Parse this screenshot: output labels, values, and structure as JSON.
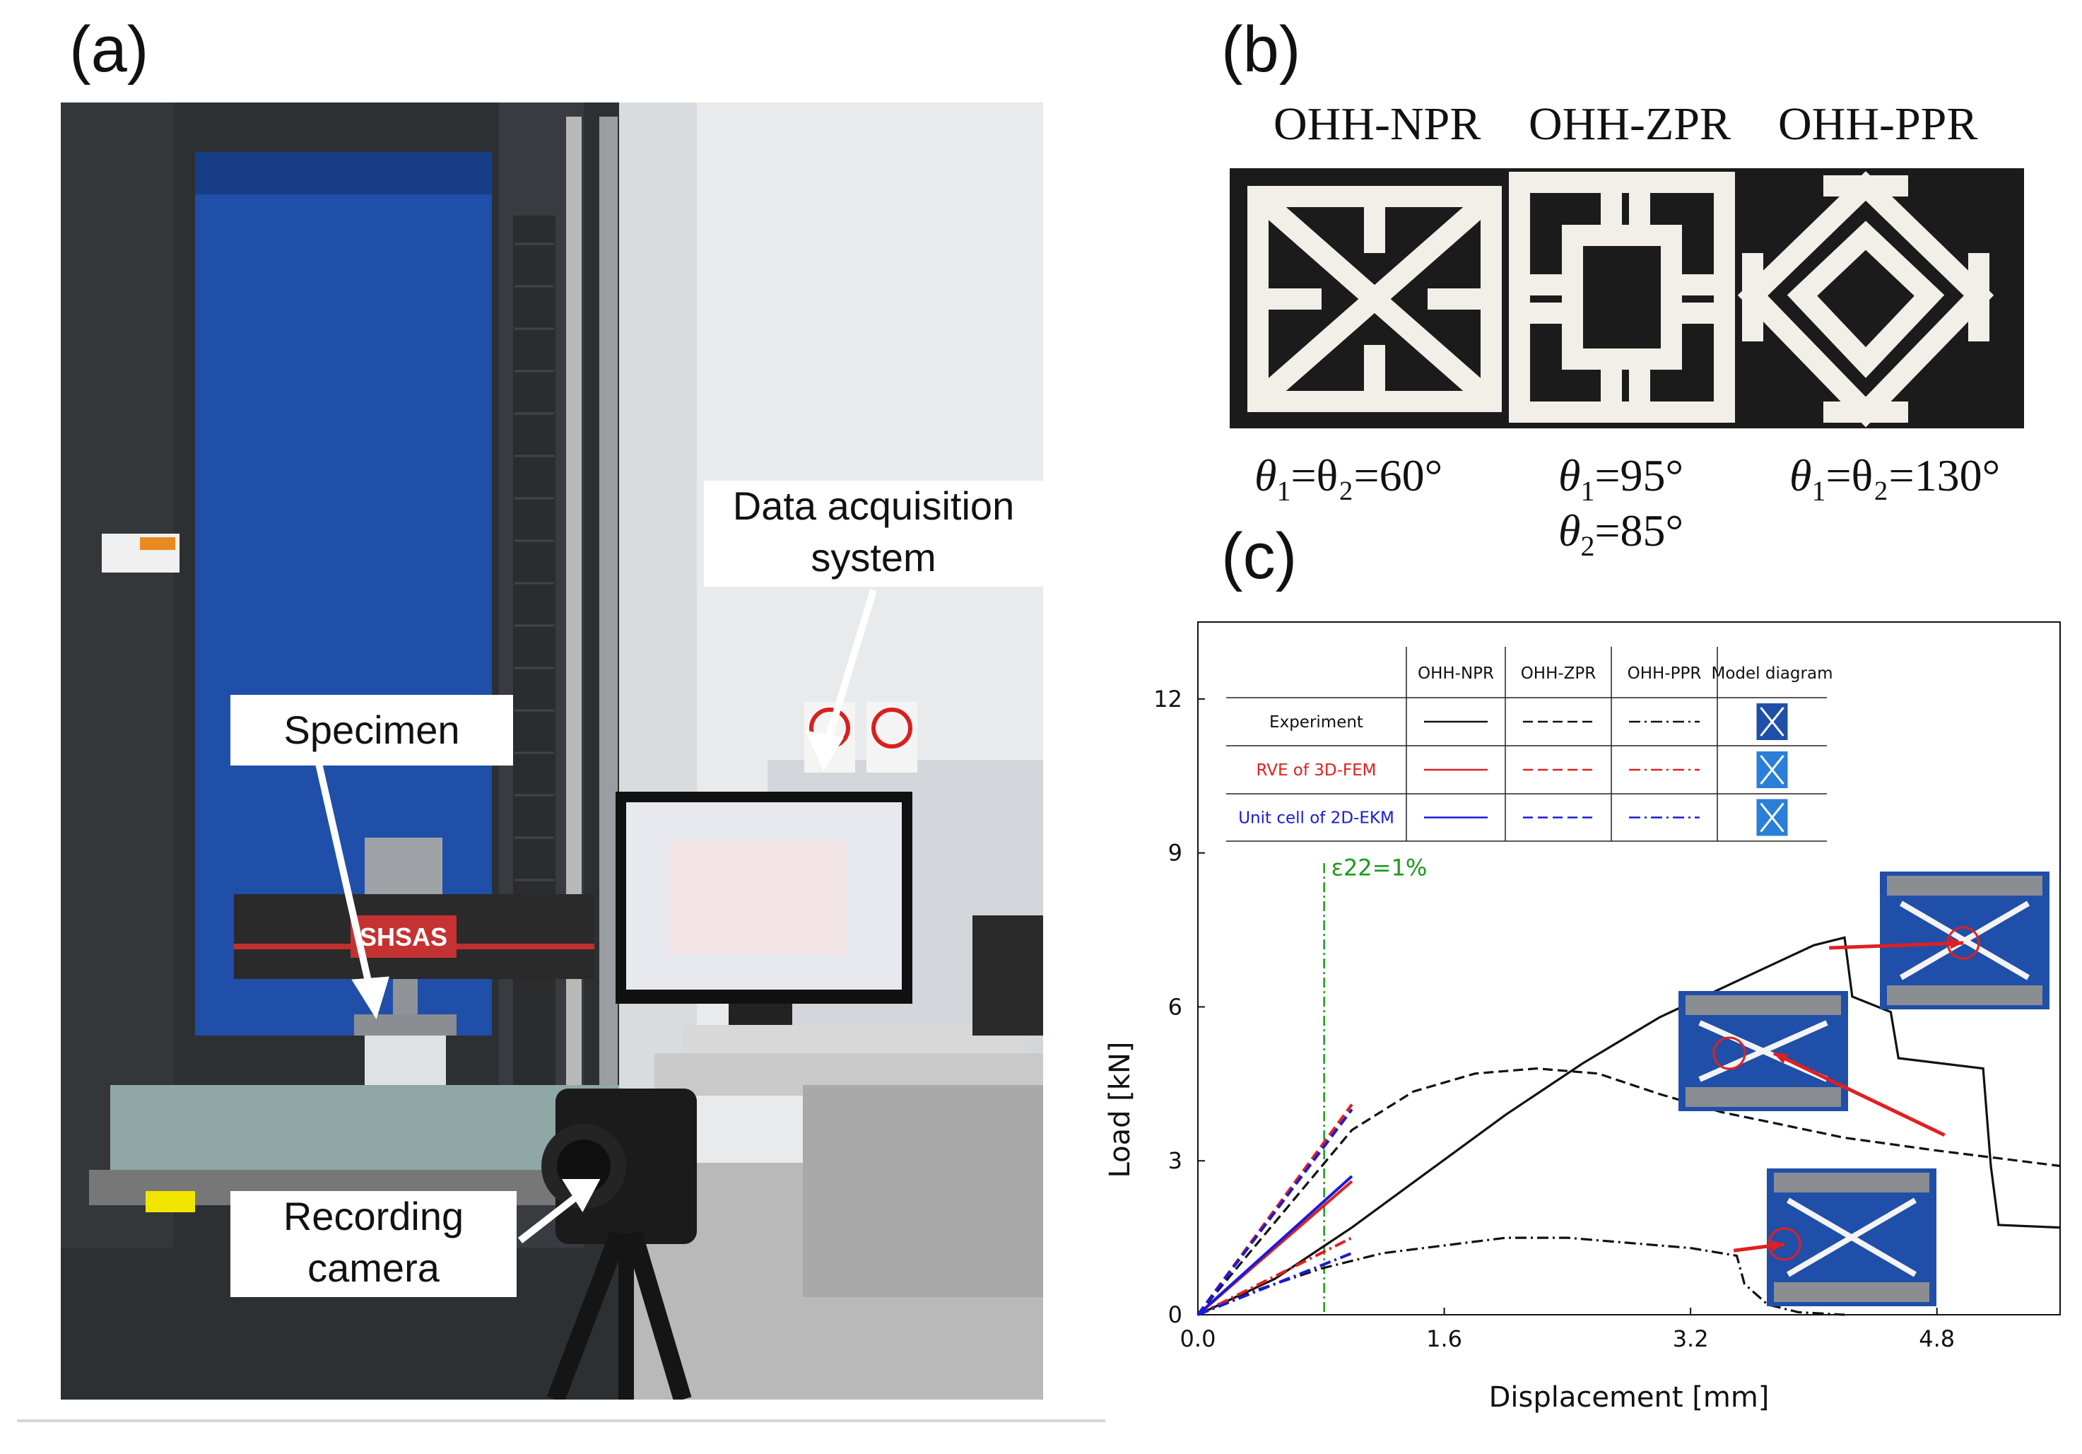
{
  "panels": {
    "a": "(a)",
    "b": "(b)",
    "c": "(c)"
  },
  "photo_callouts": {
    "data_acquisition": "Data acquisition\nsystem",
    "specimen": "Specimen",
    "recording_camera": "Recording\ncamera",
    "machine_brand": "SHSAS"
  },
  "specimens": {
    "names": [
      "OHH-NPR",
      "OHH-ZPR",
      "OHH-PPR"
    ],
    "npr_angle": "=θ₂=60°",
    "zpr_angle_1": "=95°",
    "zpr_angle_2": "=85°",
    "ppr_angle": "=θ₂=130°"
  },
  "colors": {
    "experiment": "#111111",
    "fem": "#e02020",
    "ekm": "#1a1ad8",
    "strain_line": "#1a9a1a",
    "photo_blue": "#1f4fa8"
  },
  "chart_data": {
    "type": "line",
    "xlabel": "Displacement [mm]",
    "ylabel": "Load [kN]",
    "xlim": [
      0,
      5.6
    ],
    "ylim": [
      0,
      13.5
    ],
    "xticks": [
      0.0,
      1.6,
      3.2,
      4.8
    ],
    "xtick_labels": [
      "0.0",
      "1.6",
      "3.2",
      "4.8"
    ],
    "yticks": [
      0,
      3,
      6,
      9,
      12
    ],
    "ytick_labels": [
      "0",
      "3",
      "6",
      "9",
      "12"
    ],
    "annotation": {
      "text": "ε22=1%",
      "x": 0.82
    },
    "legend": {
      "headers": [
        "OHH-NPR",
        "OHH-ZPR",
        "OHH-PPR",
        "Model diagram"
      ],
      "rows": [
        "Experiment",
        "RVE of 3D-FEM",
        "Unit cell of 2D-EKM"
      ]
    },
    "series": [
      {
        "name": "Experiment OHH-NPR",
        "style": "solid",
        "color": "experiment",
        "points": [
          [
            0,
            0
          ],
          [
            0.5,
            0.7
          ],
          [
            1.0,
            1.7
          ],
          [
            1.5,
            2.8
          ],
          [
            2.0,
            3.9
          ],
          [
            2.5,
            4.9
          ],
          [
            3.0,
            5.8
          ],
          [
            3.5,
            6.5
          ],
          [
            4.0,
            7.2
          ],
          [
            4.2,
            7.35
          ],
          [
            4.25,
            6.2
          ],
          [
            4.5,
            5.9
          ],
          [
            4.55,
            5.0
          ],
          [
            5.1,
            4.8
          ],
          [
            5.15,
            2.9
          ],
          [
            5.2,
            1.75
          ],
          [
            5.6,
            1.7
          ]
        ]
      },
      {
        "name": "Experiment OHH-ZPR",
        "style": "dashed",
        "color": "experiment",
        "points": [
          [
            0,
            0
          ],
          [
            0.5,
            1.8
          ],
          [
            1.0,
            3.6
          ],
          [
            1.4,
            4.35
          ],
          [
            1.8,
            4.7
          ],
          [
            2.2,
            4.8
          ],
          [
            2.6,
            4.7
          ],
          [
            3.0,
            4.3
          ],
          [
            3.4,
            3.95
          ],
          [
            3.8,
            3.7
          ],
          [
            4.2,
            3.45
          ],
          [
            4.8,
            3.2
          ],
          [
            5.6,
            2.9
          ]
        ]
      },
      {
        "name": "Experiment OHH-PPR",
        "style": "dashdot",
        "color": "experiment",
        "points": [
          [
            0,
            0
          ],
          [
            0.4,
            0.5
          ],
          [
            0.8,
            0.9
          ],
          [
            1.2,
            1.2
          ],
          [
            1.6,
            1.35
          ],
          [
            2.0,
            1.5
          ],
          [
            2.4,
            1.5
          ],
          [
            2.8,
            1.4
          ],
          [
            3.2,
            1.3
          ],
          [
            3.5,
            1.15
          ],
          [
            3.55,
            0.6
          ],
          [
            3.7,
            0.2
          ],
          [
            3.9,
            0.05
          ],
          [
            4.2,
            0
          ]
        ]
      },
      {
        "name": "RVE of 3D-FEM OHH-NPR",
        "style": "solid",
        "color": "fem",
        "points": [
          [
            0,
            0
          ],
          [
            1.0,
            2.6
          ]
        ]
      },
      {
        "name": "RVE of 3D-FEM OHH-ZPR",
        "style": "dashed",
        "color": "fem",
        "points": [
          [
            0,
            0
          ],
          [
            1.0,
            4.1
          ]
        ]
      },
      {
        "name": "RVE of 3D-FEM OHH-PPR",
        "style": "dashdot",
        "color": "fem",
        "points": [
          [
            0,
            0
          ],
          [
            1.0,
            1.5
          ]
        ]
      },
      {
        "name": "Unit cell of 2D-EKM OHH-NPR",
        "style": "solid",
        "color": "ekm",
        "points": [
          [
            0,
            0
          ],
          [
            1.0,
            2.7
          ]
        ]
      },
      {
        "name": "Unit cell of 2D-EKM OHH-ZPR",
        "style": "dashed",
        "color": "ekm",
        "points": [
          [
            0,
            0
          ],
          [
            1.0,
            4.0
          ]
        ]
      },
      {
        "name": "Unit cell of 2D-EKM OHH-PPR",
        "style": "dashdot",
        "color": "ekm",
        "points": [
          [
            0,
            0
          ],
          [
            1.0,
            1.2
          ]
        ]
      }
    ]
  }
}
